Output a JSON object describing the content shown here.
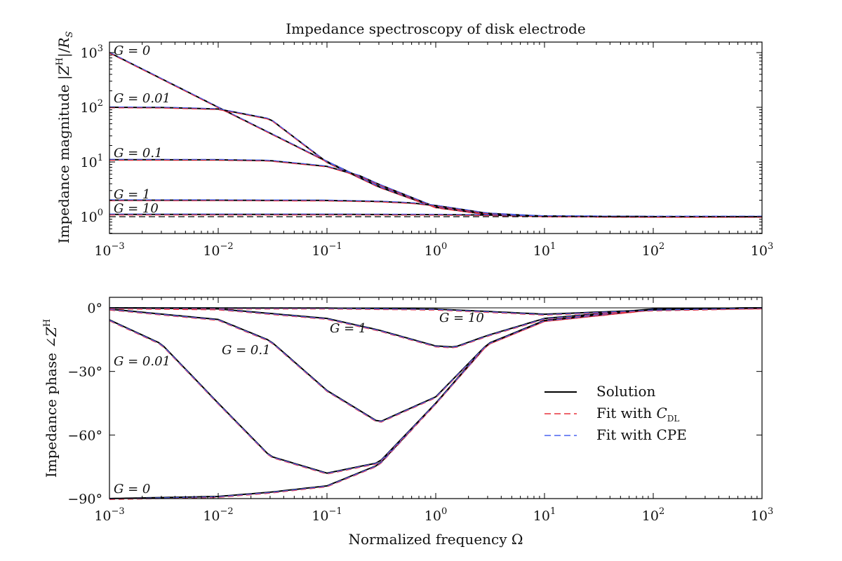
{
  "chart_data": [
    {
      "type": "line",
      "title": "Impedance spectroscopy of disk electrode",
      "xlabel": "",
      "ylabel": "Impedance magnitude |Z^H|/R_S",
      "xscale": "log",
      "yscale": "log",
      "xlim": [
        0.001,
        1000
      ],
      "ylim": [
        0.5,
        1500
      ],
      "x_ticks": [
        "10^-3",
        "10^-2",
        "10^-1",
        "10^0",
        "10^1",
        "10^2",
        "10^3"
      ],
      "y_ticks": [
        "10^0",
        "10^1",
        "10^2",
        "10^3"
      ],
      "grid": false,
      "reference_line": {
        "y": 1,
        "style": "dashed"
      },
      "series": [
        {
          "name": "G = 0",
          "x": [
            0.001,
            0.01,
            0.1,
            0.3,
            1,
            3,
            10,
            100,
            1000
          ],
          "y": [
            1000,
            100,
            10.2,
            3.6,
            1.5,
            1.1,
            1.02,
            1.0,
            1.0
          ]
        },
        {
          "name": "G = 0.01",
          "x": [
            0.001,
            0.003,
            0.01,
            0.03,
            0.1,
            0.3,
            1,
            3,
            10,
            100,
            1000
          ],
          "y": [
            100,
            99,
            93,
            61,
            9.9,
            3.5,
            1.48,
            1.1,
            1.02,
            1.0,
            1.0
          ]
        },
        {
          "name": "G = 0.1",
          "x": [
            0.001,
            0.01,
            0.03,
            0.1,
            0.2,
            0.3,
            1,
            3,
            10,
            100,
            1000
          ],
          "y": [
            11,
            10.95,
            10.6,
            8.3,
            5.6,
            3.9,
            1.5,
            1.1,
            1.02,
            1.0,
            1.0
          ]
        },
        {
          "name": "G = 1",
          "x": [
            0.001,
            0.01,
            0.1,
            0.3,
            0.6,
            1,
            3,
            10,
            100,
            1000
          ],
          "y": [
            2.0,
            2.0,
            1.98,
            1.9,
            1.78,
            1.6,
            1.15,
            1.02,
            1.0,
            1.0
          ]
        },
        {
          "name": "G = 10",
          "x": [
            0.001,
            0.1,
            1,
            3,
            10,
            100,
            1000
          ],
          "y": [
            1.1,
            1.1,
            1.09,
            1.07,
            1.02,
            1.0,
            1.0
          ]
        }
      ],
      "annotations": [
        "G = 0",
        "G = 0.01",
        "G = 0.1",
        "G = 1",
        "G = 10"
      ]
    },
    {
      "type": "line",
      "title": "",
      "xlabel": "Normalized frequency Ω",
      "ylabel": "Impedance phase ∠Z^H",
      "xscale": "log",
      "xlim": [
        0.001,
        1000
      ],
      "ylim": [
        -90,
        0
      ],
      "x_ticks": [
        "10^-3",
        "10^-2",
        "10^-1",
        "10^0",
        "10^1",
        "10^2",
        "10^3"
      ],
      "y_ticks": [
        "0°",
        "−30°",
        "−60°",
        "−90°"
      ],
      "grid": false,
      "legend_placement": "center-right",
      "legend": [
        "Solution",
        "Fit with C_DL",
        "Fit with CPE"
      ],
      "series": [
        {
          "name": "G = 0",
          "x": [
            0.001,
            0.01,
            0.03,
            0.1,
            0.3,
            1,
            3,
            10,
            100,
            1000
          ],
          "y": [
            -90,
            -89,
            -87,
            -84,
            -74,
            -45,
            -17,
            -6,
            -0.6,
            0
          ]
        },
        {
          "name": "G = 0.01",
          "x": [
            0.001,
            0.003,
            0.01,
            0.03,
            0.1,
            0.3,
            1,
            3,
            10,
            100,
            1000
          ],
          "y": [
            -5.7,
            -17,
            -45,
            -70,
            -78,
            -73,
            -45,
            -17,
            -6,
            -0.6,
            0
          ]
        },
        {
          "name": "G = 0.1",
          "x": [
            0.001,
            0.01,
            0.03,
            0.1,
            0.3,
            1,
            3,
            10,
            100,
            1000
          ],
          "y": [
            -0.6,
            -5.5,
            -15.5,
            -39,
            -54,
            -42,
            -17,
            -6,
            -0.6,
            0
          ]
        },
        {
          "name": "G = 1",
          "x": [
            0.001,
            0.01,
            0.1,
            0.3,
            1,
            1.5,
            3,
            10,
            100,
            1000
          ],
          "y": [
            0,
            -0.5,
            -5,
            -10.5,
            -18,
            -18.5,
            -13,
            -5,
            -0.5,
            0
          ]
        },
        {
          "name": "G = 10",
          "x": [
            0.001,
            0.1,
            1,
            3,
            10,
            100,
            1000
          ],
          "y": [
            0,
            -0.1,
            -0.6,
            -1.7,
            -3,
            -1,
            0
          ]
        }
      ],
      "annotations": [
        "G = 0",
        "G = 0.01",
        "G = 0.1",
        "G = 1",
        "G = 10"
      ]
    }
  ]
}
